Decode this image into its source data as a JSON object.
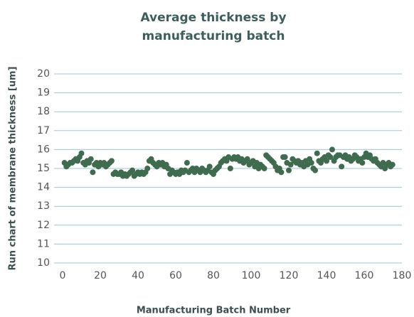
{
  "chart_data": {
    "type": "scatter",
    "title": "Average thickness by manufacturing batch",
    "xlabel": "Manufacturing Batch Number",
    "ylabel": "Run chart of membrane thickness [um]",
    "color": "#3f6b4e",
    "grid": true,
    "xlim": [
      0,
      180
    ],
    "xticks": [
      0,
      20,
      40,
      60,
      80,
      100,
      120,
      140,
      160,
      180
    ],
    "ylim": [
      10,
      20
    ],
    "yticks": [
      10,
      11,
      12,
      13,
      14,
      15,
      16,
      17,
      18,
      19,
      20
    ],
    "x": [
      1,
      2,
      3,
      4,
      5,
      6,
      7,
      8,
      9,
      10,
      11,
      12,
      13,
      14,
      15,
      16,
      17,
      18,
      19,
      20,
      21,
      22,
      23,
      24,
      25,
      26,
      27,
      28,
      29,
      30,
      31,
      32,
      33,
      34,
      35,
      36,
      37,
      38,
      39,
      40,
      41,
      42,
      43,
      44,
      45,
      46,
      47,
      48,
      49,
      50,
      51,
      52,
      53,
      54,
      55,
      56,
      57,
      58,
      59,
      60,
      61,
      62,
      63,
      64,
      65,
      66,
      67,
      68,
      69,
      70,
      71,
      72,
      73,
      74,
      75,
      76,
      77,
      78,
      79,
      80,
      81,
      82,
      83,
      84,
      85,
      86,
      87,
      88,
      89,
      90,
      91,
      92,
      93,
      94,
      95,
      96,
      97,
      98,
      99,
      100,
      101,
      102,
      103,
      104,
      105,
      106,
      107,
      108,
      109,
      110,
      111,
      112,
      113,
      114,
      115,
      116,
      117,
      118,
      119,
      120,
      121,
      122,
      123,
      124,
      125,
      126,
      127,
      128,
      129,
      130,
      131,
      132,
      133,
      134,
      135,
      136,
      137,
      138,
      139,
      140,
      141,
      142,
      143,
      144,
      145,
      146,
      147,
      148,
      149,
      150,
      151,
      152,
      153,
      154,
      155,
      156,
      157,
      158,
      159,
      160,
      161,
      162,
      163,
      164,
      165,
      166,
      167,
      168,
      169,
      170,
      171,
      172,
      173,
      174,
      175
    ],
    "values": [
      15.3,
      15.1,
      15.2,
      15.3,
      15.3,
      15.4,
      15.5,
      15.4,
      15.6,
      15.8,
      15.3,
      15.2,
      15.4,
      15.3,
      15.5,
      14.8,
      15.2,
      15.3,
      15.1,
      15.3,
      15.2,
      15.3,
      15.1,
      15.2,
      15.3,
      15.4,
      14.7,
      14.8,
      14.7,
      14.7,
      14.8,
      14.6,
      14.7,
      14.6,
      14.7,
      14.8,
      14.9,
      14.6,
      14.7,
      14.8,
      14.7,
      14.8,
      14.7,
      14.8,
      15.0,
      15.4,
      15.5,
      15.3,
      15.2,
      15.1,
      15.3,
      15.2,
      15.3,
      15.1,
      15.2,
      15.0,
      14.7,
      14.9,
      14.8,
      14.7,
      14.8,
      14.7,
      14.9,
      14.8,
      14.9,
      15.3,
      14.8,
      14.9,
      15.0,
      14.8,
      15.0,
      14.9,
      14.8,
      15.0,
      14.9,
      14.8,
      14.9,
      15.1,
      14.8,
      14.7,
      14.9,
      15.0,
      15.1,
      15.3,
      15.4,
      15.5,
      15.4,
      15.6,
      15.0,
      15.5,
      15.6,
      15.5,
      15.6,
      15.4,
      15.5,
      15.3,
      15.4,
      15.5,
      15.2,
      15.3,
      15.4,
      15.1,
      15.3,
      15.0,
      15.2,
      15.1,
      15.0,
      15.7,
      15.6,
      15.5,
      15.4,
      15.3,
      15.1,
      14.9,
      15.0,
      14.8,
      15.6,
      15.6,
      15.3,
      14.9,
      15.2,
      15.5,
      15.4,
      15.3,
      15.4,
      15.2,
      15.3,
      15.1,
      15.4,
      15.2,
      15.5,
      15.3,
      15.0,
      14.9,
      15.8,
      15.4,
      15.3,
      15.5,
      15.6,
      15.4,
      15.7,
      15.6,
      16.0,
      15.4,
      15.6,
      15.7,
      15.7,
      15.1,
      15.6,
      15.7,
      15.5,
      15.6,
      15.4,
      15.5,
      15.7,
      15.6,
      15.4,
      15.5,
      15.3,
      15.6,
      15.8,
      15.6,
      15.7,
      15.5,
      15.4,
      15.5,
      15.3,
      15.2,
      15.1,
      15.3,
      15.0,
      15.2,
      15.3,
      15.1,
      15.2
    ]
  }
}
